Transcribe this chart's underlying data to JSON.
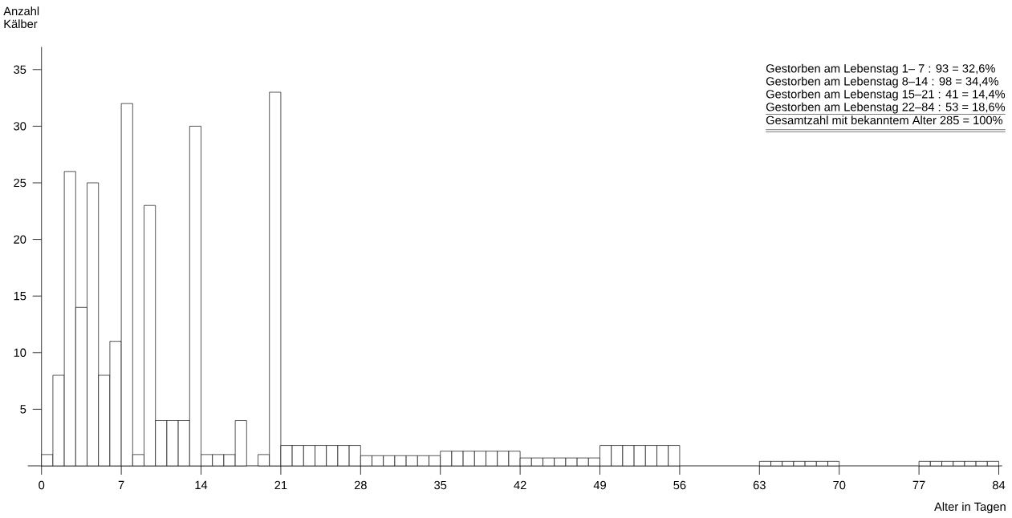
{
  "chart_data": {
    "type": "histogram",
    "xlabel": "Alter in Tagen",
    "ylabel": "Anzahl Kälber",
    "bins": [
      0,
      1,
      2,
      3,
      4,
      5,
      6,
      7,
      8,
      9,
      10,
      11,
      12,
      13,
      14,
      15,
      16,
      17,
      18,
      19,
      20,
      21,
      22,
      23,
      24,
      25,
      26,
      27,
      28,
      29,
      30,
      31,
      32,
      33,
      34,
      35,
      36,
      37,
      38,
      39,
      40,
      41,
      42,
      43,
      44,
      45,
      46,
      47,
      48,
      49,
      50,
      51,
      52,
      53,
      54,
      55,
      56,
      57,
      58,
      59,
      60,
      61,
      62,
      63,
      64,
      65,
      66,
      67,
      68,
      69,
      70,
      71,
      72,
      73,
      74,
      75,
      76,
      77,
      78,
      79,
      80,
      81,
      82,
      83,
      84
    ],
    "values": [
      1,
      8,
      26,
      14,
      25,
      8,
      11,
      32,
      1,
      23,
      4,
      4,
      4,
      30,
      1,
      1,
      1,
      4,
      0,
      1,
      33,
      1.8,
      1.8,
      1.8,
      1.8,
      1.8,
      1.8,
      1.8,
      0.9,
      0.9,
      0.9,
      0.9,
      0.9,
      0.9,
      0.9,
      1.3,
      1.3,
      1.3,
      1.3,
      1.3,
      1.3,
      1.3,
      0.7,
      0.7,
      0.7,
      0.7,
      0.7,
      0.7,
      0.7,
      1.8,
      1.8,
      1.8,
      1.8,
      1.8,
      1.8,
      1.8,
      0,
      0,
      0,
      0,
      0,
      0,
      0,
      0.4,
      0.4,
      0.4,
      0.4,
      0.4,
      0.4,
      0.4,
      0,
      0,
      0,
      0,
      0,
      0,
      0,
      0.4,
      0.4,
      0.4,
      0.4,
      0.4,
      0.4,
      0.4
    ],
    "color": "#ffffff",
    "xlim": [
      -1.2,
      84.3
    ],
    "ylim": [
      0,
      37
    ],
    "xticks": [
      0,
      7,
      14,
      21,
      28,
      35,
      42,
      49,
      56,
      63,
      70,
      77,
      84
    ],
    "yticks": [
      5,
      10,
      15,
      20,
      25,
      30,
      35
    ],
    "grid": false,
    "annotations": [
      "Gestorben am Lebenstag 1– 7 : 93 = 32,6%",
      "Gestorben am Lebenstag 8–14 : 98 = 34,4%",
      "Gestorben am Lebenstag 15–21 : 41 = 14,4%",
      "Gestorben am Lebenstag 22–84 : 53 = 18,6%",
      "Gesamtzahl mit bekanntem Alter 285 = 100%"
    ]
  }
}
